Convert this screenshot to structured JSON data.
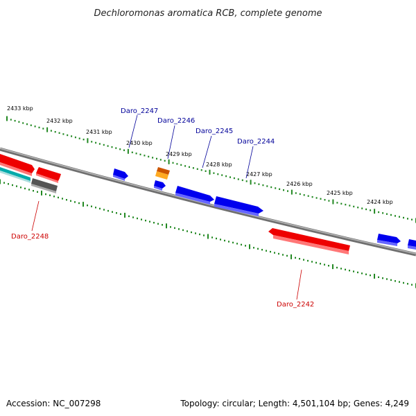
{
  "title": "Dechloromonas aromatica RCB, complete genome",
  "footer": {
    "accession": "Accession: NC_007298",
    "summary": "Topology: circular; Length: 4,501,104 bp; Genes: 4,249"
  },
  "colors": {
    "backbone": "#888888",
    "forward_gene": "#0000ee",
    "reverse_gene": "#ee0000",
    "rna_gene": "#ee8800",
    "other_gene": "#666666",
    "teal_gene": "#00aaaa",
    "tick": "#228822",
    "forward_label": "#000099",
    "reverse_label": "#cc0000"
  },
  "upper_scale": [
    {
      "label": "2433 kbp"
    },
    {
      "label": "2432 kbp"
    },
    {
      "label": "2431 kbp"
    },
    {
      "label": "2430 kbp"
    },
    {
      "label": "2429 kbp"
    },
    {
      "label": "2428 kbp"
    },
    {
      "label": "2427 kbp"
    },
    {
      "label": "2426 kbp"
    },
    {
      "label": "2425 kbp"
    },
    {
      "label": "2424 kbp"
    }
  ],
  "gene_labels": [
    {
      "name": "Daro_2247",
      "strand": "forward"
    },
    {
      "name": "Daro_2246",
      "strand": "forward"
    },
    {
      "name": "Daro_2245",
      "strand": "forward"
    },
    {
      "name": "Daro_2244",
      "strand": "forward"
    },
    {
      "name": "Daro_2248",
      "strand": "reverse"
    },
    {
      "name": "Daro_2242",
      "strand": "reverse"
    }
  ]
}
